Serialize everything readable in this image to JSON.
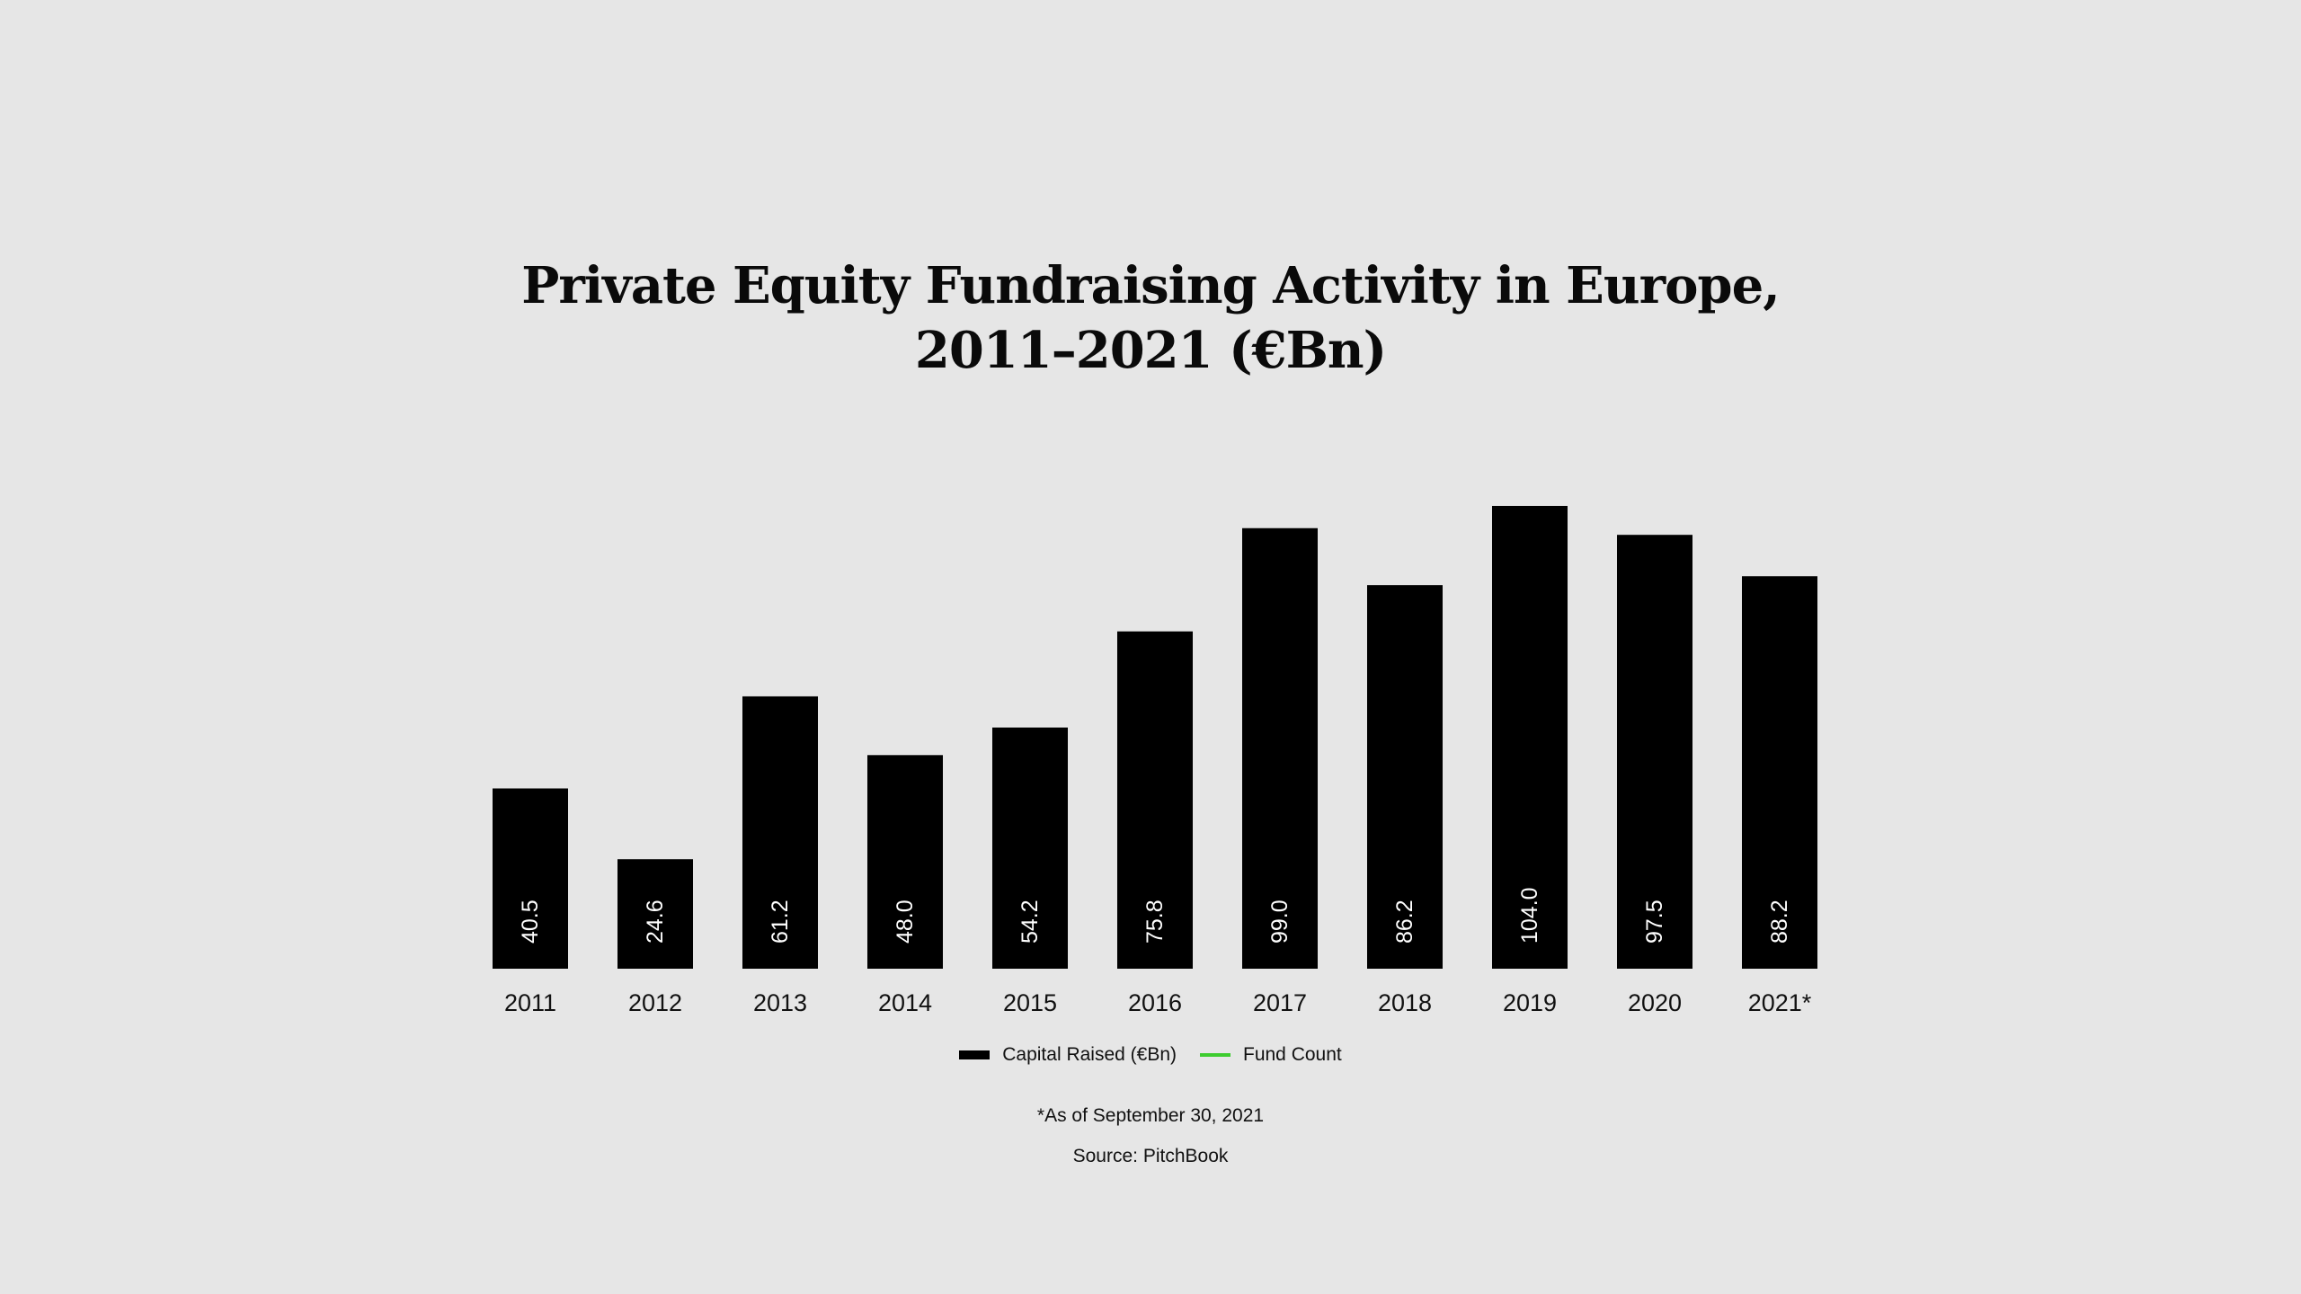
{
  "chart_data": {
    "type": "bar",
    "title": "Private Equity Fundraising Activity in Europe,",
    "subtitle": "2011–2021 (€Bn)",
    "categories": [
      "2011",
      "2012",
      "2013",
      "2014",
      "2015",
      "2016",
      "2017",
      "2018",
      "2019",
      "2020",
      "2021*"
    ],
    "series": [
      {
        "name": "Capital Raised (€Bn)",
        "values": [
          40.5,
          24.6,
          61.2,
          48.0,
          54.2,
          75.8,
          99.0,
          86.2,
          104.0,
          97.5,
          88.2
        ],
        "labels": [
          "40.5",
          "24.6",
          "61.2",
          "48.0",
          "54.2",
          "75.8",
          "99.0",
          "86.2",
          "104.0",
          "97.5",
          "88.2"
        ],
        "color": "#000000"
      }
    ],
    "legend": [
      {
        "name": "Capital Raised (€Bn)",
        "color": "#000000",
        "marker": "bar"
      },
      {
        "name": "Fund Count",
        "color": "#3dcc2f",
        "marker": "line"
      }
    ],
    "ylim": [
      0,
      104
    ],
    "xlabel": "",
    "ylabel": "",
    "grid": false,
    "legend_position": "bottom"
  },
  "footnotes": {
    "note": "*As of September 30, 2021",
    "source": "Source: PitchBook"
  },
  "colors": {
    "background": "#e6e6e6",
    "bar": "#000000",
    "fund_count": "#3dcc2f"
  }
}
